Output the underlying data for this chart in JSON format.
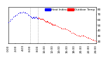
{
  "bg_color": "#ffffff",
  "line_color_temp": "#ff0000",
  "line_color_heat": "#0000ff",
  "legend_label_temp": "Outdoor Temp",
  "legend_label_heat": "Heat Index",
  "yticks": [
    20,
    30,
    40,
    50,
    60,
    70,
    80
  ],
  "ylim": [
    16,
    84
  ],
  "xlim": [
    0,
    1440
  ],
  "vlines": [
    360,
    480
  ],
  "vline_color": "#888888",
  "vline_style": ":",
  "temp_data": [
    [
      0,
      55
    ],
    [
      20,
      58
    ],
    [
      40,
      60
    ],
    [
      60,
      62
    ],
    [
      80,
      65
    ],
    [
      100,
      67
    ],
    [
      120,
      68
    ],
    [
      140,
      70
    ],
    [
      160,
      72
    ],
    [
      180,
      73
    ],
    [
      200,
      74
    ],
    [
      220,
      74
    ],
    [
      240,
      75
    ],
    [
      260,
      74
    ],
    [
      280,
      73
    ],
    [
      300,
      72
    ],
    [
      320,
      70
    ],
    [
      340,
      68
    ],
    [
      360,
      67
    ],
    [
      370,
      65
    ],
    [
      380,
      64
    ],
    [
      390,
      63
    ],
    [
      400,
      64
    ],
    [
      410,
      65
    ],
    [
      420,
      64
    ],
    [
      430,
      63
    ],
    [
      440,
      64
    ],
    [
      450,
      65
    ],
    [
      460,
      64
    ],
    [
      470,
      63
    ],
    [
      480,
      62
    ],
    [
      490,
      63
    ],
    [
      500,
      64
    ],
    [
      510,
      63
    ],
    [
      520,
      62
    ],
    [
      530,
      61
    ],
    [
      540,
      62
    ],
    [
      550,
      61
    ],
    [
      560,
      62
    ],
    [
      570,
      61
    ],
    [
      580,
      60
    ],
    [
      590,
      59
    ],
    [
      600,
      58
    ],
    [
      610,
      57
    ],
    [
      620,
      57
    ],
    [
      630,
      58
    ],
    [
      640,
      57
    ],
    [
      650,
      56
    ],
    [
      660,
      55
    ],
    [
      670,
      54
    ],
    [
      680,
      55
    ],
    [
      690,
      54
    ],
    [
      700,
      53
    ],
    [
      710,
      52
    ],
    [
      720,
      51
    ],
    [
      730,
      50
    ],
    [
      740,
      51
    ],
    [
      750,
      50
    ],
    [
      760,
      51
    ],
    [
      770,
      50
    ],
    [
      800,
      48
    ],
    [
      820,
      47
    ],
    [
      840,
      46
    ],
    [
      860,
      45
    ],
    [
      880,
      44
    ],
    [
      900,
      43
    ],
    [
      920,
      44
    ],
    [
      940,
      43
    ],
    [
      960,
      42
    ],
    [
      980,
      41
    ],
    [
      1000,
      40
    ],
    [
      1020,
      38
    ],
    [
      1040,
      36
    ],
    [
      1060,
      35
    ],
    [
      1080,
      34
    ],
    [
      1100,
      33
    ],
    [
      1120,
      32
    ],
    [
      1140,
      31
    ],
    [
      1160,
      30
    ],
    [
      1180,
      29
    ],
    [
      1200,
      30
    ],
    [
      1220,
      31
    ],
    [
      1240,
      30
    ],
    [
      1260,
      29
    ],
    [
      1280,
      28
    ],
    [
      1300,
      27
    ],
    [
      1320,
      26
    ],
    [
      1340,
      25
    ],
    [
      1360,
      24
    ],
    [
      1380,
      23
    ],
    [
      1400,
      22
    ],
    [
      1420,
      21
    ],
    [
      1440,
      20
    ]
  ],
  "heat_data": [
    [
      0,
      55
    ],
    [
      20,
      58
    ],
    [
      40,
      60
    ],
    [
      60,
      62
    ],
    [
      80,
      65
    ],
    [
      100,
      67
    ],
    [
      120,
      68
    ],
    [
      140,
      70
    ],
    [
      160,
      72
    ],
    [
      180,
      73
    ],
    [
      200,
      74
    ],
    [
      220,
      74
    ],
    [
      240,
      75
    ],
    [
      260,
      74
    ],
    [
      280,
      73
    ],
    [
      300,
      72
    ],
    [
      320,
      70
    ],
    [
      340,
      68
    ],
    [
      360,
      67
    ],
    [
      370,
      65
    ],
    [
      380,
      64
    ],
    [
      390,
      63
    ],
    [
      400,
      64
    ],
    [
      410,
      65
    ],
    [
      420,
      64
    ],
    [
      430,
      63
    ],
    [
      440,
      64
    ],
    [
      450,
      65
    ],
    [
      460,
      64
    ],
    [
      470,
      63
    ],
    [
      480,
      62
    ]
  ],
  "xtick_positions": [
    0,
    120,
    240,
    360,
    480,
    600,
    720,
    840,
    960,
    1080,
    1200,
    1320,
    1440
  ],
  "xtick_labels": [
    "0:00",
    "2:00",
    "4:00",
    "6:00",
    "8:00",
    "10:00",
    "12:00",
    "14:00",
    "16:00",
    "18:00",
    "20:00",
    "22:00",
    "24:00"
  ],
  "tick_fontsize": 3.0,
  "legend_fontsize": 3.0
}
